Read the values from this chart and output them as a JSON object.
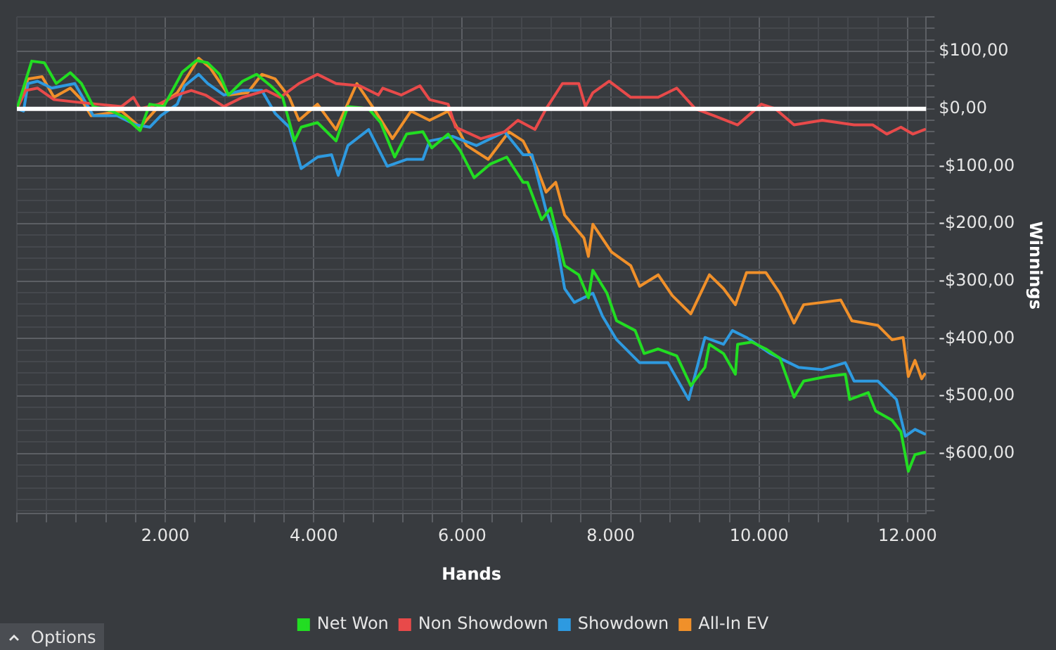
{
  "chart_data": {
    "type": "line",
    "xlabel": "Hands",
    "ylabel": "Winnings",
    "legend": "bottom",
    "marker": "none",
    "grid": true,
    "xlim": [
      0,
      12250
    ],
    "ylim": [
      -705,
      160
    ],
    "xticks": [
      {
        "value": 0,
        "label": null
      },
      {
        "value": 400,
        "label": null
      },
      {
        "value": 800,
        "label": null
      },
      {
        "value": 1200,
        "label": null
      },
      {
        "value": 1600,
        "label": null
      },
      {
        "value": 2000,
        "label": "2.000"
      },
      {
        "value": 2400,
        "label": null
      },
      {
        "value": 2800,
        "label": null
      },
      {
        "value": 3200,
        "label": null
      },
      {
        "value": 3600,
        "label": null
      },
      {
        "value": 4000,
        "label": "4.000"
      },
      {
        "value": 4400,
        "label": null
      },
      {
        "value": 4800,
        "label": null
      },
      {
        "value": 5200,
        "label": null
      },
      {
        "value": 5600,
        "label": null
      },
      {
        "value": 6000,
        "label": "6.000"
      },
      {
        "value": 6400,
        "label": null
      },
      {
        "value": 6800,
        "label": null
      },
      {
        "value": 7200,
        "label": null
      },
      {
        "value": 7600,
        "label": null
      },
      {
        "value": 8000,
        "label": "8.000"
      },
      {
        "value": 8400,
        "label": null
      },
      {
        "value": 8800,
        "label": null
      },
      {
        "value": 9200,
        "label": null
      },
      {
        "value": 9600,
        "label": null
      },
      {
        "value": 10000,
        "label": "10.000"
      },
      {
        "value": 10400,
        "label": null
      },
      {
        "value": 10800,
        "label": null
      },
      {
        "value": 11200,
        "label": null
      },
      {
        "value": 11600,
        "label": null
      },
      {
        "value": 12000,
        "label": "12.000"
      }
    ],
    "yticks": [
      {
        "value": -700,
        "label": null
      },
      {
        "value": -680,
        "label": null
      },
      {
        "value": -660,
        "label": null
      },
      {
        "value": -640,
        "label": null
      },
      {
        "value": -620,
        "label": null
      },
      {
        "value": -600,
        "label": "-$600,00"
      },
      {
        "value": -580,
        "label": null
      },
      {
        "value": -560,
        "label": null
      },
      {
        "value": -540,
        "label": null
      },
      {
        "value": -520,
        "label": null
      },
      {
        "value": -500,
        "label": "-$500,00"
      },
      {
        "value": -480,
        "label": null
      },
      {
        "value": -460,
        "label": null
      },
      {
        "value": -440,
        "label": null
      },
      {
        "value": -420,
        "label": null
      },
      {
        "value": -400,
        "label": "-$400,00"
      },
      {
        "value": -380,
        "label": null
      },
      {
        "value": -360,
        "label": null
      },
      {
        "value": -340,
        "label": null
      },
      {
        "value": -320,
        "label": null
      },
      {
        "value": -300,
        "label": "-$300,00"
      },
      {
        "value": -280,
        "label": null
      },
      {
        "value": -260,
        "label": null
      },
      {
        "value": -240,
        "label": null
      },
      {
        "value": -220,
        "label": null
      },
      {
        "value": -200,
        "label": "-$200,00"
      },
      {
        "value": -180,
        "label": null
      },
      {
        "value": -160,
        "label": null
      },
      {
        "value": -140,
        "label": null
      },
      {
        "value": -120,
        "label": null
      },
      {
        "value": -100,
        "label": "-$100,00"
      },
      {
        "value": -80,
        "label": null
      },
      {
        "value": -60,
        "label": null
      },
      {
        "value": -40,
        "label": null
      },
      {
        "value": -20,
        "label": null
      },
      {
        "value": 0,
        "label": "$0,00"
      },
      {
        "value": 20,
        "label": null
      },
      {
        "value": 40,
        "label": null
      },
      {
        "value": 60,
        "label": null
      },
      {
        "value": 80,
        "label": null
      },
      {
        "value": 100,
        "label": "$100,00"
      },
      {
        "value": 120,
        "label": null
      },
      {
        "value": 140,
        "label": null
      },
      {
        "value": 160,
        "label": null
      }
    ],
    "ref_lines": [
      {
        "axis": "y",
        "value": 0,
        "color": "#ffffff"
      }
    ],
    "annotations": [
      "Options"
    ],
    "series": [
      {
        "name": "Net Won",
        "color": "#22dd22",
        "x": [
          0,
          200,
          370,
          530,
          720,
          870,
          1030,
          1280,
          1470,
          1660,
          1790,
          1980,
          2230,
          2420,
          2570,
          2730,
          2850,
          3040,
          3230,
          3420,
          3580,
          3740,
          3830,
          4050,
          4300,
          4460,
          4740,
          4900,
          5090,
          5250,
          5470,
          5590,
          5810,
          5970,
          6160,
          6380,
          6600,
          6820,
          6880,
          7070,
          7190,
          7380,
          7570,
          7700,
          7760,
          7950,
          8080,
          8330,
          8450,
          8640,
          8890,
          9080,
          9270,
          9330,
          9520,
          9680,
          9710,
          9900,
          10090,
          10280,
          10470,
          10600,
          10910,
          11160,
          11220,
          11470,
          11570,
          11790,
          11910,
          12010,
          12100,
          12230
        ],
        "values": [
          0,
          83,
          80,
          44,
          63,
          44,
          4,
          -4,
          -16,
          -38,
          8,
          4,
          64,
          84,
          80,
          60,
          24,
          48,
          60,
          40,
          20,
          -56,
          -32,
          -24,
          -56,
          4,
          0,
          -24,
          -84,
          -44,
          -40,
          -68,
          -44,
          -72,
          -120,
          -96,
          -84,
          -128,
          -128,
          -193,
          -173,
          -273,
          -289,
          -329,
          -281,
          -321,
          -369,
          -386,
          -426,
          -418,
          -430,
          -482,
          -450,
          -410,
          -426,
          -462,
          -410,
          -406,
          -418,
          -434,
          -502,
          -474,
          -466,
          -462,
          -506,
          -494,
          -526,
          -542,
          -562,
          -631,
          -602,
          -598
        ]
      },
      {
        "name": "Non Showdown",
        "color": "#e84a4a",
        "x": [
          0,
          120,
          280,
          500,
          780,
          1090,
          1410,
          1570,
          1660,
          1910,
          2160,
          2350,
          2540,
          2790,
          3040,
          3360,
          3550,
          3800,
          4050,
          4300,
          4620,
          4870,
          4930,
          5180,
          5430,
          5560,
          5810,
          5910,
          6250,
          6570,
          6750,
          6980,
          7130,
          7350,
          7570,
          7660,
          7760,
          7980,
          8270,
          8640,
          8890,
          9140,
          9390,
          9710,
          10030,
          10220,
          10470,
          10850,
          11280,
          11530,
          11720,
          11910,
          12070,
          12230
        ],
        "values": [
          0,
          32,
          36,
          16,
          12,
          8,
          4,
          20,
          0,
          8,
          24,
          32,
          24,
          4,
          20,
          32,
          20,
          44,
          60,
          44,
          40,
          24,
          36,
          24,
          40,
          16,
          8,
          -32,
          -52,
          -40,
          -20,
          -36,
          0,
          44,
          44,
          4,
          28,
          48,
          20,
          20,
          36,
          0,
          -12,
          -28,
          8,
          0,
          -28,
          -20,
          -28,
          -28,
          -44,
          -32,
          -44,
          -36
        ]
      },
      {
        "name": "Showdown",
        "color": "#2e9ae0",
        "x": [
          0,
          90,
          150,
          280,
          470,
          780,
          1030,
          1350,
          1600,
          1790,
          1940,
          2160,
          2260,
          2450,
          2570,
          2790,
          3040,
          3300,
          3480,
          3670,
          3830,
          4050,
          4240,
          4330,
          4460,
          4740,
          4990,
          5250,
          5470,
          5560,
          5870,
          6190,
          6570,
          6820,
          6940,
          7130,
          7260,
          7380,
          7510,
          7760,
          7890,
          8080,
          8390,
          8770,
          9050,
          9270,
          9520,
          9640,
          9830,
          10150,
          10530,
          10850,
          11160,
          11280,
          11600,
          11850,
          11970,
          12100,
          12230
        ],
        "values": [
          0,
          -4,
          44,
          48,
          36,
          44,
          -12,
          -12,
          -28,
          -32,
          -12,
          8,
          40,
          60,
          44,
          24,
          32,
          32,
          -8,
          -32,
          -104,
          -84,
          -80,
          -116,
          -64,
          -36,
          -100,
          -88,
          -88,
          -56,
          -48,
          -64,
          -40,
          -80,
          -80,
          -177,
          -225,
          -313,
          -337,
          -321,
          -361,
          -402,
          -442,
          -442,
          -506,
          -398,
          -410,
          -386,
          -398,
          -426,
          -450,
          -454,
          -442,
          -474,
          -474,
          -506,
          -570,
          -558,
          -566
        ]
      },
      {
        "name": "All-In EV",
        "color": "#f0902a",
        "x": [
          0,
          60,
          150,
          340,
          500,
          720,
          870,
          1000,
          1410,
          1660,
          1910,
          2160,
          2450,
          2600,
          2850,
          3110,
          3300,
          3480,
          3670,
          3800,
          4050,
          4300,
          4580,
          4810,
          5060,
          5310,
          5560,
          5810,
          6060,
          6350,
          6630,
          6820,
          7010,
          7130,
          7260,
          7380,
          7640,
          7700,
          7760,
          8010,
          8270,
          8390,
          8640,
          8830,
          9080,
          9330,
          9520,
          9680,
          9830,
          10090,
          10280,
          10470,
          10600,
          10850,
          11100,
          11250,
          11600,
          11790,
          11940,
          12010,
          12100,
          12190,
          12230
        ],
        "values": [
          0,
          16,
          52,
          56,
          20,
          36,
          16,
          -12,
          -4,
          -32,
          4,
          28,
          88,
          72,
          24,
          28,
          60,
          52,
          20,
          -20,
          8,
          -36,
          44,
          0,
          -52,
          -4,
          -20,
          -4,
          -64,
          -88,
          -40,
          -56,
          -104,
          -145,
          -128,
          -185,
          -225,
          -257,
          -201,
          -249,
          -273,
          -309,
          -289,
          -325,
          -357,
          -289,
          -313,
          -341,
          -285,
          -285,
          -321,
          -373,
          -341,
          -337,
          -333,
          -369,
          -377,
          -402,
          -398,
          -466,
          -438,
          -470,
          -462
        ]
      }
    ]
  }
}
